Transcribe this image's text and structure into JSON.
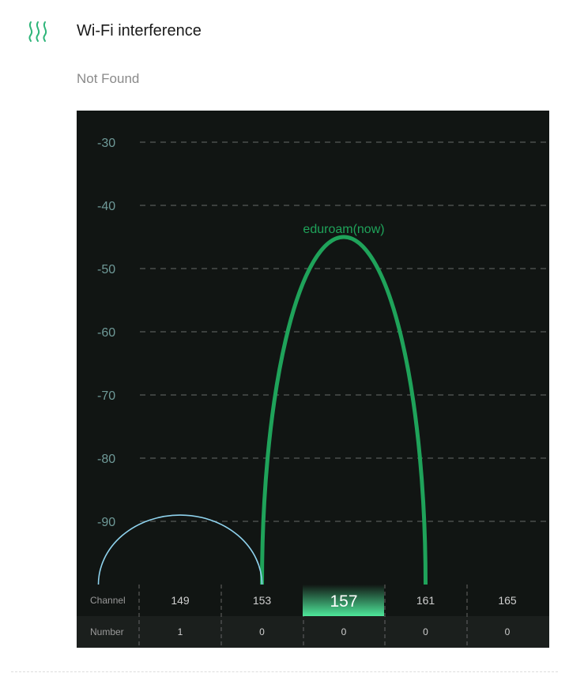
{
  "header": {
    "title": "Wi-Fi interference",
    "status": "Not Found",
    "icon": "wifi-interference-waves-icon"
  },
  "colors": {
    "accent": "#1fa35a",
    "background": "#111513",
    "axis_text": "#6f9a98",
    "other_network": "#8fd3ee",
    "selected_channel": "#4ee79a"
  },
  "chart_data": {
    "type": "line",
    "y_ticks": [
      "-30",
      "-40",
      "-50",
      "-60",
      "-70",
      "-80",
      "-90"
    ],
    "ylim": [
      -100,
      -25
    ],
    "grid": true,
    "channels": [
      "149",
      "153",
      "157",
      "161",
      "165"
    ],
    "selected_channel": "157",
    "row_labels": {
      "channel": "Channel",
      "number": "Number"
    },
    "numbers": [
      "1",
      "0",
      "0",
      "0",
      "0"
    ],
    "series": [
      {
        "name": "eduroam(now)",
        "label": "eduroam(now)",
        "center_channel": 157,
        "channel_span": [
          153,
          161
        ],
        "peak_dbm": -45,
        "color": "#1fa35a"
      },
      {
        "center_channel": 149,
        "channel_span": [
          145,
          153
        ],
        "peak_dbm": -89,
        "color": "#8fd3ee"
      }
    ]
  }
}
